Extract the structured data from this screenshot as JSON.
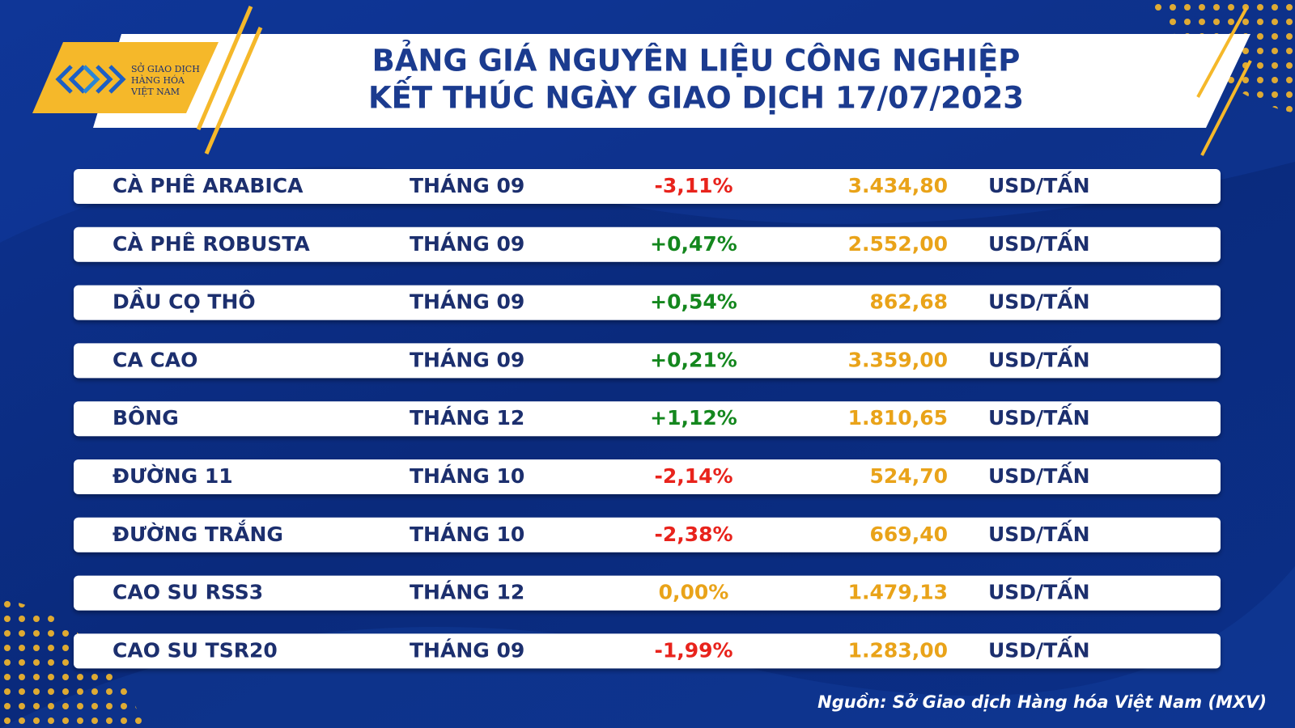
{
  "header": {
    "logo": [
      "SỞ GIAO DỊCH",
      "HÀNG HÓA",
      "VIỆT NAM"
    ],
    "title": [
      "BẢNG GIÁ NGUYÊN LIỆU CÔNG NGHIỆP",
      "KẾT THÚC NGÀY GIAO DỊCH 17/07/2023"
    ]
  },
  "table": {
    "price_color": "#e9a319",
    "rows": [
      {
        "name": "CÀ PHÊ ARABICA",
        "month": "THÁNG 09",
        "change": "-3,11%",
        "change_color": "#e8231c",
        "price": "3.434,80",
        "unit": "USD/TẤN"
      },
      {
        "name": "CÀ PHÊ ROBUSTA",
        "month": "THÁNG 09",
        "change": "+0,47%",
        "change_color": "#14871e",
        "price": "2.552,00",
        "unit": "USD/TẤN"
      },
      {
        "name": "DẦU CỌ THÔ",
        "month": "THÁNG 09",
        "change": "+0,54%",
        "change_color": "#14871e",
        "price": "862,68",
        "unit": "USD/TẤN"
      },
      {
        "name": "CA CAO",
        "month": "THÁNG 09",
        "change": "+0,21%",
        "change_color": "#14871e",
        "price": "3.359,00",
        "unit": "USD/TẤN"
      },
      {
        "name": "BÔNG",
        "month": "THÁNG 12",
        "change": "+1,12%",
        "change_color": "#14871e",
        "price": "1.810,65",
        "unit": "USD/TẤN"
      },
      {
        "name": "ĐƯỜNG 11",
        "month": "THÁNG 10",
        "change": "-2,14%",
        "change_color": "#e8231c",
        "price": "524,70",
        "unit": "USD/TẤN"
      },
      {
        "name": "ĐƯỜNG TRẮNG",
        "month": "THÁNG 10",
        "change": "-2,38%",
        "change_color": "#e8231c",
        "price": "669,40",
        "unit": "USD/TẤN"
      },
      {
        "name": "CAO SU RSS3",
        "month": "THÁNG 12",
        "change": "0,00%",
        "change_color": "#e9a319",
        "price": "1.479,13",
        "unit": "USD/TẤN"
      },
      {
        "name": "CAO SU TSR20",
        "month": "THÁNG 09",
        "change": "-1,99%",
        "change_color": "#e8231c",
        "price": "1.283,00",
        "unit": "USD/TẤN"
      }
    ]
  },
  "source": "Nguồn: Sở Giao dịch Hàng hóa Việt Nam (MXV)"
}
